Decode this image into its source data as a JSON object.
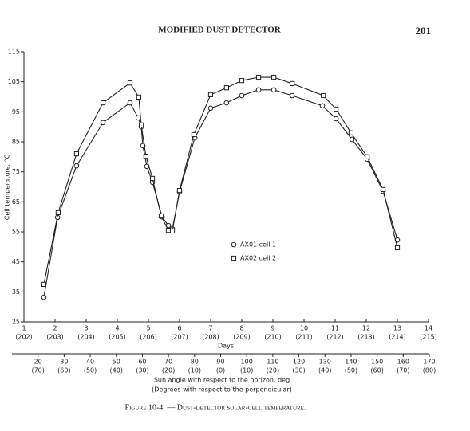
{
  "header": {
    "title": "MODIFIED DUST DETECTOR",
    "page_number": "201"
  },
  "chart_data": {
    "type": "line",
    "ylabel": "Cell temperature, °C",
    "xlabel": "Days",
    "xlim": [
      1,
      14
    ],
    "xticks": [
      1,
      2,
      3,
      4,
      5,
      6,
      7,
      8,
      9,
      10,
      11,
      12,
      13,
      14
    ],
    "xtick_sublabels": [
      "(202)",
      "(203)",
      "(204)",
      "(205)",
      "(206)",
      "(207)",
      "(208)",
      "(209)",
      "(210)",
      "(211)",
      "(212)",
      "(213)",
      "(214)",
      "(215)"
    ],
    "ylim": [
      25,
      115
    ],
    "yticks": [
      25,
      35,
      45,
      55,
      65,
      75,
      85,
      95,
      105,
      115
    ],
    "sun_axis": {
      "label": "Sun angle with respect to the horizon, deg",
      "sublabel": "(Degrees with respect to the perpendicular)",
      "xlim": [
        10,
        170
      ],
      "xticks": [
        20,
        30,
        40,
        50,
        60,
        70,
        80,
        90,
        100,
        110,
        120,
        130,
        140,
        150,
        160,
        170
      ],
      "xtick_sublabels": [
        "(70)",
        "(60)",
        "(50)",
        "(40)",
        "(30)",
        "(20)",
        "(10)",
        "(0)",
        "(10)",
        "(20)",
        "(30)",
        "(40)",
        "(50)",
        "(60)",
        "(70)",
        "(80)"
      ]
    },
    "legend": "center",
    "series": [
      {
        "name": "AX01 cell 1",
        "marker": "circle",
        "color": "#222222",
        "x": [
          1.64,
          2.08,
          2.69,
          3.54,
          4.41,
          4.67,
          4.77,
          4.82,
          4.95,
          5.13,
          5.44,
          5.64,
          5.77,
          6.0,
          6.49,
          7.0,
          7.51,
          8.0,
          8.54,
          9.03,
          9.62,
          10.59,
          11.03,
          11.54,
          12.03,
          12.54,
          13.0
        ],
        "values": [
          33.2,
          59.8,
          77,
          91.4,
          98,
          93,
          90,
          83.7,
          76.8,
          71.5,
          60,
          57.1,
          56,
          68.3,
          86.3,
          96.2,
          98,
          100.4,
          102.3,
          102.3,
          100.4,
          97,
          92.7,
          85.8,
          79.2,
          68.5,
          52.3
        ]
      },
      {
        "name": "AX02 cell 2",
        "marker": "square",
        "color": "#222222",
        "x": [
          1.64,
          2.1,
          2.69,
          3.54,
          4.41,
          4.69,
          4.77,
          4.92,
          5.13,
          5.41,
          5.64,
          5.77,
          6.0,
          6.46,
          7.0,
          7.51,
          8.0,
          8.54,
          9.03,
          9.62,
          10.62,
          11.03,
          11.51,
          12.03,
          12.54,
          13.0
        ],
        "values": [
          37.5,
          61.4,
          81,
          98,
          104.6,
          99.9,
          90.6,
          80.2,
          72.8,
          60.3,
          55.5,
          55.3,
          68.8,
          87.4,
          100.7,
          103,
          105.4,
          106.5,
          106.5,
          104.4,
          100.4,
          95.9,
          88,
          80,
          69.1,
          49.7
        ]
      }
    ]
  },
  "caption": "Figure 10-4. — Dust-detector solar-cell temperature."
}
